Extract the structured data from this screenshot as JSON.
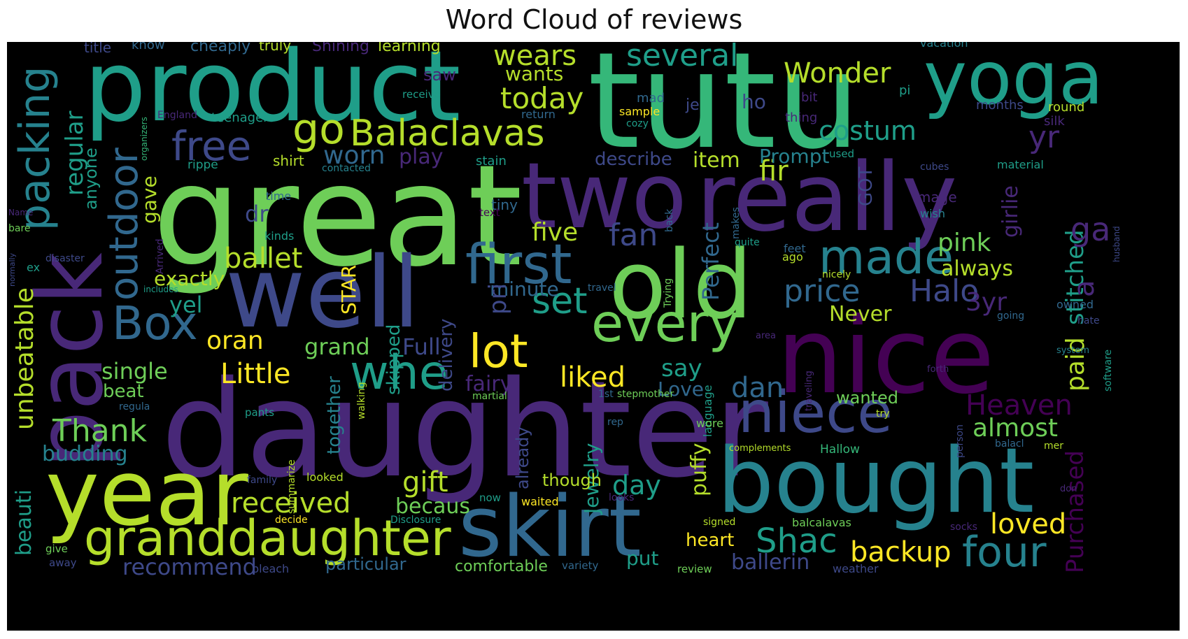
{
  "title": "Word Cloud of reviews",
  "palette": {
    "background": "#000000",
    "dark_purple": "#440154",
    "purple": "#482878",
    "indigo": "#3e4989",
    "blue": "#31688e",
    "teal": "#26828e",
    "cyan": "#1f9e89",
    "green": "#35b779",
    "lime": "#6ece58",
    "yellow_green": "#b5de2b",
    "yellow": "#fde725"
  },
  "words": [
    "tutu",
    "great",
    "daughter",
    "product",
    "two",
    "really",
    "nice",
    "well",
    "old",
    "pack",
    "bought",
    "year",
    "skirt",
    "yoga",
    "granddaughter",
    "niece",
    "every",
    "first",
    "Balaclavas",
    "made",
    "lot",
    "outdoor",
    "packing",
    "free",
    "go",
    "wears",
    "several",
    "Wonder",
    "today",
    "wants",
    "costum",
    "whe",
    "Box",
    "set",
    "fir",
    "fan",
    "pink",
    "price",
    "Halo",
    "yr",
    "regular",
    "unbeatable",
    "worn",
    "ballet",
    "received",
    "Thank",
    "Little",
    "single",
    "gift",
    "four",
    "backup",
    "loved",
    "Purchased",
    "Heaven",
    "almost",
    "paid",
    "dan",
    "day",
    "Shac",
    "recommend",
    "becaus",
    "beauti",
    "oran",
    "Full",
    "liked",
    "say",
    "exactly",
    "yel",
    "grand",
    "five",
    "item",
    "describe",
    "Prompt",
    "always",
    "Never",
    "3yr",
    "stitched",
    "girlie",
    "gave",
    "anyone",
    "dr",
    "minute",
    "delivery",
    "pri",
    "skipped",
    "STAR",
    "Perfect",
    "GOT",
    "fairy",
    "beat",
    "budding",
    "Love",
    "wanted",
    "puffy",
    "Jewelry",
    "together",
    "ballerin",
    "heart",
    "though",
    "already",
    "put",
    "comfortable",
    "particular",
    "play",
    "shirt",
    "stain",
    "title",
    "know",
    "cheaply",
    "truly",
    "Shining",
    "learning",
    "vacation",
    "saw",
    "mad",
    "je",
    "ho",
    "bit",
    "pi",
    "months",
    "round",
    "receive",
    "return",
    "sample",
    "cozy",
    "thing",
    "silk",
    "England",
    "teenagers",
    "organizers",
    "rippe",
    "contacted",
    "used",
    "cubes",
    "material",
    "time",
    "tiny",
    "Image",
    "text",
    "wish",
    "Name",
    "bare",
    "kinds",
    "makes",
    "back",
    "husband",
    "normally",
    "ex",
    "disaster",
    "quite",
    "feet",
    "includes",
    "Trying",
    "travel",
    "nicely",
    "ago",
    "owned",
    "going",
    "hate",
    "area",
    "system",
    "software",
    "forth",
    "traveling",
    "martial",
    "1st",
    "stepmother",
    "language",
    "walking",
    "pants",
    "regula",
    "try",
    "summarize",
    "person",
    "rep",
    "wore",
    "complements",
    "Hallow",
    "balacl",
    "mer",
    "family",
    "looked",
    "now",
    "looks",
    "don",
    "decide",
    "Disclosure",
    "waited",
    "signed",
    "balcalavas",
    "give",
    "away",
    "bleach",
    "variety",
    "review",
    "weather",
    "socks",
    "Arrived",
    "a",
    "ga"
  ]
}
